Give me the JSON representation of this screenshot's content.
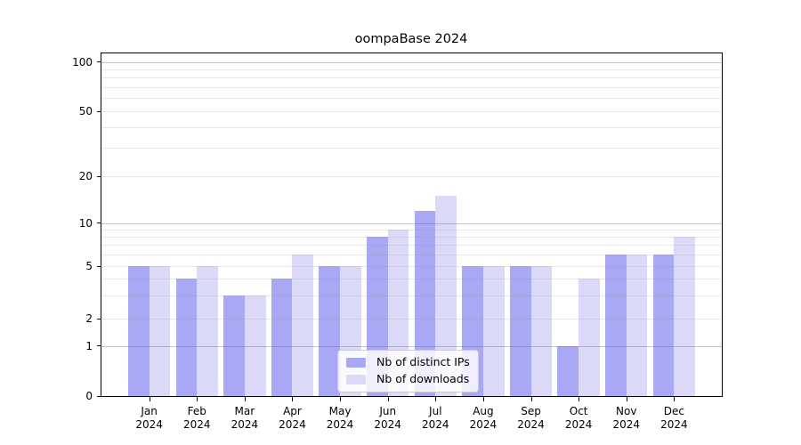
{
  "chart_data": {
    "type": "bar",
    "title": "oompaBase 2024",
    "categories": [
      "Jan\n2024",
      "Feb\n2024",
      "Mar\n2024",
      "Apr\n2024",
      "May\n2024",
      "Jun\n2024",
      "Jul\n2024",
      "Aug\n2024",
      "Sep\n2024",
      "Oct\n2024",
      "Nov\n2024",
      "Dec\n2024"
    ],
    "series": [
      {
        "name": "Nb of distinct IPs",
        "color": "#a8a8f5",
        "values": [
          5,
          4,
          3,
          4,
          5,
          8,
          12,
          5,
          5,
          1,
          6,
          6
        ]
      },
      {
        "name": "Nb of downloads",
        "color": "#dadaf8",
        "values": [
          5,
          5,
          3,
          6,
          5,
          9,
          15,
          5,
          5,
          4,
          6,
          8
        ]
      }
    ],
    "xlabel": "",
    "ylabel": "",
    "y_ticks": [
      0,
      1,
      2,
      5,
      10,
      20,
      50,
      100
    ],
    "y_scale": "log above 1, linear between 0 and 1",
    "ylim": [
      0,
      112
    ],
    "grid": true,
    "legend_position": "lower-center"
  }
}
